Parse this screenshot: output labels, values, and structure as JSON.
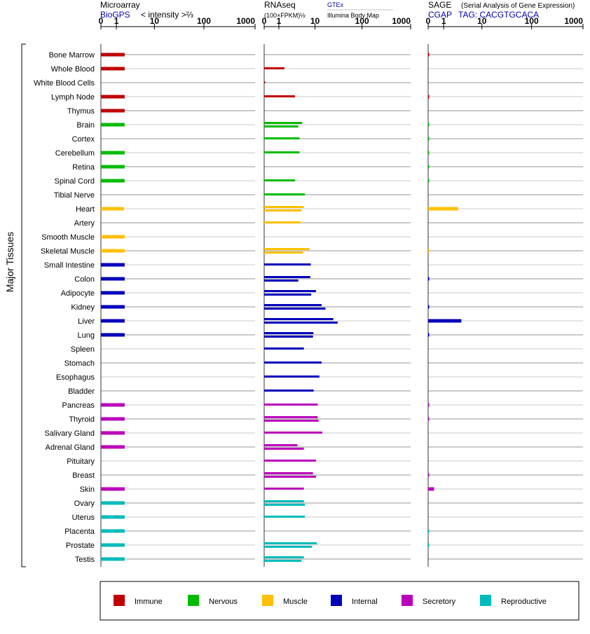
{
  "colors": {
    "Immune": "#c00000",
    "Nervous": "#00bb00",
    "Muscle": "#ffc000",
    "Internal": "#0000bb",
    "Secretory": "#bb00bb",
    "Reproductive": "#00bbbb"
  },
  "y_axis_label": "Major Tissues",
  "legend": [
    "Immune",
    "Nervous",
    "Muscle",
    "Internal",
    "Secretory",
    "Reproductive"
  ],
  "chart_data": [
    {
      "type": "bar",
      "title": "Microarray",
      "source": "BioGPS",
      "ylabel": "< intensity >⅔",
      "ticks": [
        0,
        1,
        10,
        100,
        1000
      ],
      "scale": "log",
      "categories": [
        "Bone Marrow",
        "Whole Blood",
        "White Blood Cells",
        "Lymph Node",
        "Thymus",
        "Brain",
        "Cortex",
        "Cerebellum",
        "Retina",
        "Spinal Cord",
        "Tibial Nerve",
        "Heart",
        "Artery",
        "Smooth Muscle",
        "Skeletal Muscle",
        "Small Intestine",
        "Colon",
        "Adipocyte",
        "Kidney",
        "Liver",
        "Lung",
        "Spleen",
        "Stomach",
        "Esophagus",
        "Bladder",
        "Pancreas",
        "Thyroid",
        "Salivary Gland",
        "Adrenal Gland",
        "Pituitary",
        "Breast",
        "Skin",
        "Ovary",
        "Uterus",
        "Placenta",
        "Prostate",
        "Testis"
      ],
      "groups": [
        "Immune",
        "Immune",
        "Immune",
        "Immune",
        "Immune",
        "Nervous",
        "Nervous",
        "Nervous",
        "Nervous",
        "Nervous",
        "Nervous",
        "Muscle",
        "Muscle",
        "Muscle",
        "Muscle",
        "Internal",
        "Internal",
        "Internal",
        "Internal",
        "Internal",
        "Internal",
        "Internal",
        "Internal",
        "Internal",
        "Internal",
        "Secretory",
        "Secretory",
        "Secretory",
        "Secretory",
        "Secretory",
        "Secretory",
        "Secretory",
        "Reproductive",
        "Reproductive",
        "Reproductive",
        "Reproductive",
        "Reproductive"
      ],
      "values": [
        [
          1.9
        ],
        [
          1.9
        ],
        [],
        [
          1.9
        ],
        [
          1.9
        ],
        [
          1.9
        ],
        [],
        [
          1.9
        ],
        [
          1.9
        ],
        [
          1.9
        ],
        [],
        [
          1.8
        ],
        [],
        [
          1.9
        ],
        [
          1.9
        ],
        [
          1.9
        ],
        [
          1.9
        ],
        [
          1.9
        ],
        [
          1.9
        ],
        [
          1.9
        ],
        [
          1.9
        ],
        [],
        [],
        [],
        [],
        [
          1.9
        ],
        [
          1.9
        ],
        [
          1.9
        ],
        [
          1.9
        ],
        [],
        [],
        [
          1.9
        ],
        [
          1.9
        ],
        [
          1.9
        ],
        [
          1.9
        ],
        [
          1.9
        ],
        [
          1.9
        ]
      ]
    },
    {
      "type": "bar",
      "title": "RNAseq",
      "ylabel": "(100×FPKM)½",
      "sources": [
        "GTEx",
        "Illumina Body Map"
      ],
      "ticks": [
        0,
        1,
        10,
        100,
        1000
      ],
      "scale": "log",
      "series": [
        {
          "name": "GTEx"
        },
        {
          "name": "Illumina Body Map"
        }
      ],
      "values": [
        [],
        [
          1.6
        ],
        [
          0.04
        ],
        [
          3.3
        ],
        [],
        [
          5.0,
          4.0
        ],
        [
          4.3
        ],
        [
          4.3
        ],
        [],
        [
          3.3
        ],
        [
          5.8
        ],
        [
          5.5,
          4.8
        ],
        [
          4.6
        ],
        [],
        [
          7.5,
          5.3
        ],
        [
          8.0
        ],
        [
          7.8,
          4.0
        ],
        [
          10.5,
          8.2
        ],
        [
          14.0,
          17.0
        ],
        [
          25.0,
          31.0
        ],
        [
          9.2,
          9.0
        ],
        [
          5.5
        ],
        [
          14.0
        ],
        [
          12.5
        ],
        [
          9.3
        ],
        [
          11.5
        ],
        [
          11.5,
          12.0
        ],
        [
          14.5
        ],
        [
          3.8,
          5.5
        ],
        [
          10.5
        ],
        [
          9.0,
          10.5
        ],
        [
          5.5
        ],
        [
          5.5,
          5.8
        ],
        [
          5.8
        ],
        [],
        [
          11.0,
          8.5
        ],
        [
          5.5,
          4.8
        ]
      ]
    },
    {
      "type": "bar",
      "title": "SAGE",
      "subtitle": "(Serial Analysis of Gene Expression)",
      "source": "CGAP",
      "tag": "TAG: CACGTGCACA",
      "ticks": [
        0,
        1,
        10,
        100,
        1000
      ],
      "scale": "log",
      "values": [
        [
          0.05
        ],
        [],
        [],
        [
          0.05
        ],
        [],
        [
          0.02
        ],
        [
          0.02
        ],
        [
          0.02
        ],
        [
          0.02
        ],
        [
          0.02
        ],
        [],
        [
          2.8
        ],
        [],
        [],
        [
          0.02
        ],
        [],
        [
          0.05
        ],
        [],
        [
          0.05
        ],
        [
          3.4
        ],
        [
          0.05
        ],
        [],
        [],
        [],
        [],
        [
          0.05
        ],
        [
          0.05
        ],
        [],
        [],
        [],
        [
          0.02
        ],
        [
          0.3
        ],
        [],
        [],
        [
          0.02
        ],
        [
          0.02
        ],
        []
      ]
    }
  ]
}
